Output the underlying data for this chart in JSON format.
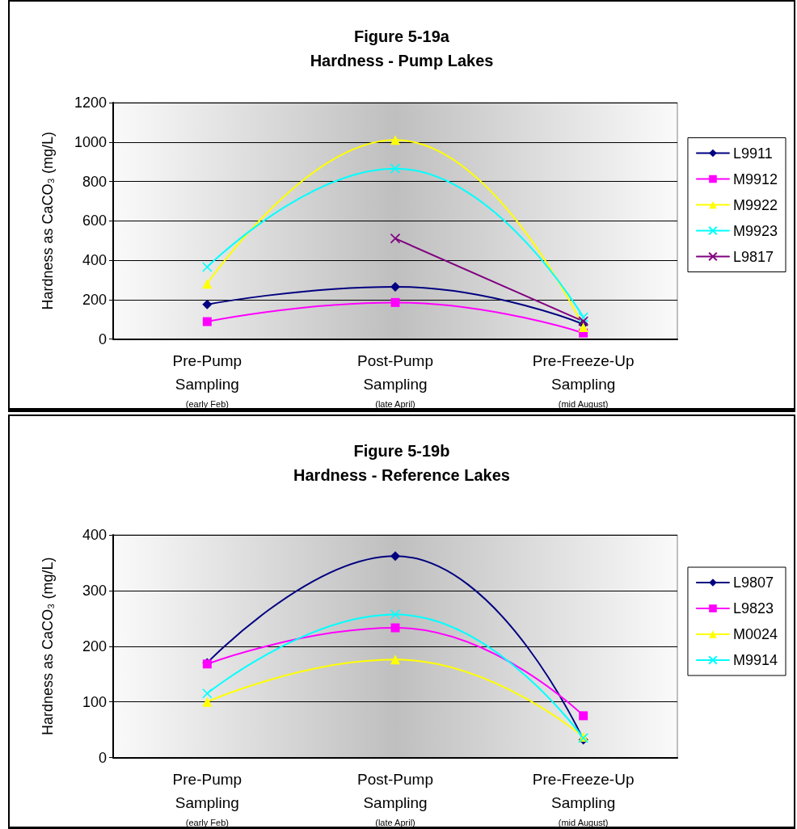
{
  "chart_data": [
    {
      "type": "line",
      "title": "Figure 5-19a",
      "subtitle": "Hardness - Pump Lakes",
      "ylabel": "Hardness as CaCO₃ (mg/L)",
      "categories": [
        "Pre-Pump\nSampling\n(early Feb)",
        "Post-Pump\nSampling\n(late April)",
        "Pre-Freeze-Up\nSampling\n(mid August)"
      ],
      "series": [
        {
          "name": "L9911",
          "color": "#000080",
          "marker": "diamond",
          "values": [
            175,
            265,
            75
          ]
        },
        {
          "name": "M9912",
          "color": "#ff00ff",
          "marker": "square",
          "values": [
            88,
            185,
            30
          ]
        },
        {
          "name": "M9922",
          "color": "#ffff00",
          "marker": "triangle",
          "values": [
            280,
            1010,
            60
          ]
        },
        {
          "name": "M9923",
          "color": "#00ffff",
          "marker": "cross",
          "values": [
            365,
            865,
            110
          ]
        },
        {
          "name": "L9817",
          "color": "#800080",
          "marker": "cross",
          "values": [
            null,
            510,
            90
          ]
        }
      ],
      "ylim": [
        0,
        1200
      ],
      "yticks": [
        0,
        200,
        400,
        600,
        800,
        1000,
        1200
      ],
      "grid": "y",
      "legend": "right"
    },
    {
      "type": "line",
      "title": "Figure 5-19b",
      "subtitle": "Hardness - Reference Lakes",
      "ylabel": "Hardness as CaCO₃ (mg/L)",
      "categories": [
        "Pre-Pump\nSampling\n(early Feb)",
        "Post-Pump\nSampling\n(late April)",
        "Pre-Freeze-Up\nSampling\n(mid August)"
      ],
      "series": [
        {
          "name": "L9807",
          "color": "#000080",
          "marker": "diamond",
          "values": [
            170,
            362,
            32
          ]
        },
        {
          "name": "L9823",
          "color": "#ff00ff",
          "marker": "square",
          "values": [
            168,
            233,
            75
          ]
        },
        {
          "name": "M0024",
          "color": "#ffff00",
          "marker": "triangle",
          "values": [
            100,
            176,
            37
          ]
        },
        {
          "name": "M9914",
          "color": "#00ffff",
          "marker": "cross",
          "values": [
            115,
            257,
            35
          ]
        }
      ],
      "ylim": [
        0,
        400
      ],
      "yticks": [
        0,
        100,
        200,
        300,
        400
      ],
      "grid": "y",
      "legend": "right"
    }
  ]
}
